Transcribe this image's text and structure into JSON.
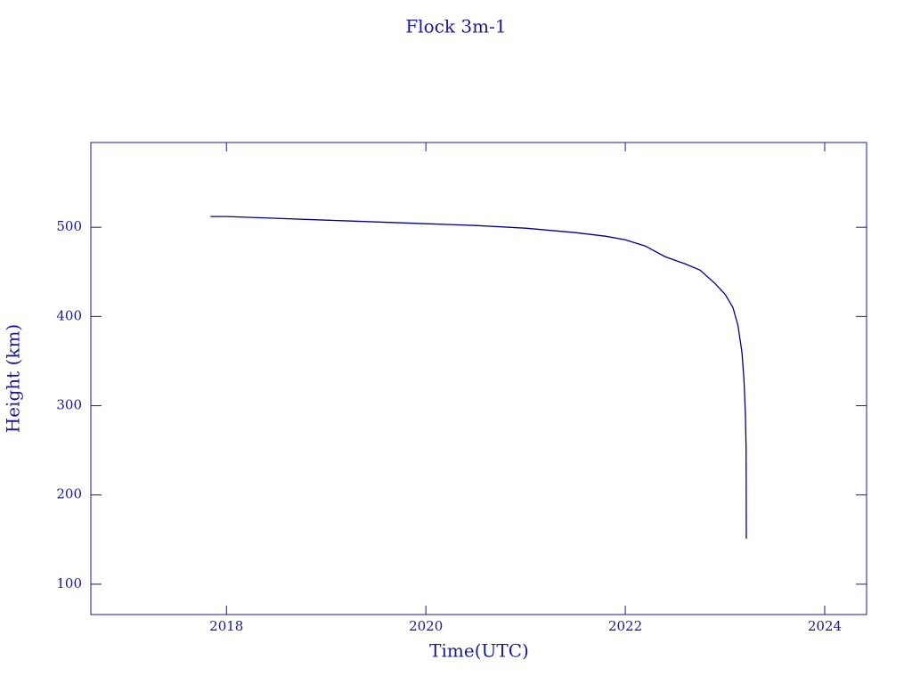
{
  "chart_data": {
    "type": "line",
    "title": "Flock 3m-1",
    "x_label": "Time(UTC)",
    "y_label": "Height (km)",
    "x": [
      2017.84,
      2018,
      2018.5,
      2019,
      2019.5,
      2020,
      2020.5,
      2021,
      2021.5,
      2021.8,
      2022,
      2022.2,
      2022.4,
      2022.6,
      2022.75,
      2022.9,
      2023,
      2023.08,
      2023.13,
      2023.17,
      2023.19,
      2023.205,
      2023.212,
      2023.214
    ],
    "series": [
      {
        "name": "Flock 3m-1",
        "color": "#000080",
        "values": [
          512,
          512,
          510,
          508,
          506,
          504,
          502,
          499,
          494,
          490,
          486,
          479,
          467,
          459,
          452,
          437,
          425,
          410,
          390,
          360,
          330,
          290,
          250,
          151
        ]
      }
    ],
    "xlim": [
      2016.64,
      2024.42
    ],
    "xticks": [
      2018,
      2020,
      2022,
      2024
    ],
    "ylim": [
      66,
      595
    ],
    "yticks": [
      100,
      200,
      300,
      400,
      500
    ],
    "axis_color": "#1a1a8c"
  }
}
